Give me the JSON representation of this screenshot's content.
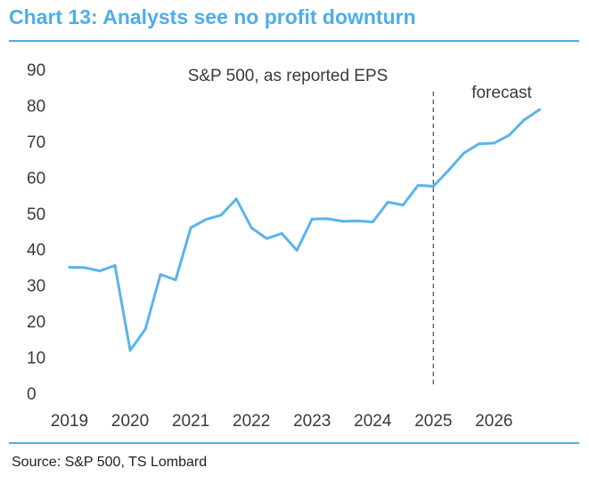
{
  "title": "Chart 13: Analysts see no profit downturn",
  "source": "Source: S&P 500, TS Lombard",
  "colors": {
    "accent": "#4daee8",
    "series_line": "#5ab4ec",
    "forecast_divider": "#555555",
    "text": "#3a3a3a"
  },
  "chart_data": {
    "type": "line",
    "title": "S&P 500, as reported EPS",
    "annotation": "forecast",
    "forecast_start": 2025,
    "xlabel": "",
    "ylabel": "",
    "ylim": [
      0,
      90
    ],
    "xlim": [
      2019,
      2026.92
    ],
    "grid": false,
    "legend": "none",
    "x_ticks": [
      "2019",
      "2020",
      "2021",
      "2022",
      "2023",
      "2024",
      "2025",
      "2026"
    ],
    "y_ticks": [
      "0",
      "10",
      "20",
      "30",
      "40",
      "50",
      "60",
      "70",
      "80",
      "90"
    ],
    "series": [
      {
        "x": [
          2019.0,
          2019.25,
          2019.5,
          2019.75,
          2020.0,
          2020.25,
          2020.5,
          2020.75,
          2021.0,
          2021.25,
          2021.5,
          2021.75,
          2022.0,
          2022.25,
          2022.5,
          2022.75,
          2023.0,
          2023.25,
          2023.5,
          2023.75,
          2024.0,
          2024.25,
          2024.5,
          2024.75,
          2025.0,
          2025.25,
          2025.5,
          2025.75,
          2026.0,
          2026.25,
          2026.5,
          2026.75
        ],
        "values": [
          35.0,
          34.9,
          34.0,
          35.5,
          11.9,
          17.8,
          33.0,
          31.5,
          46.0,
          48.3,
          49.5,
          54.0,
          46.0,
          43.0,
          44.4,
          39.7,
          48.4,
          48.5,
          47.8,
          47.9,
          47.6,
          53.1,
          52.3,
          57.8,
          57.5,
          61.9,
          66.7,
          69.3,
          69.5,
          71.7,
          76.0,
          78.8
        ]
      }
    ]
  }
}
